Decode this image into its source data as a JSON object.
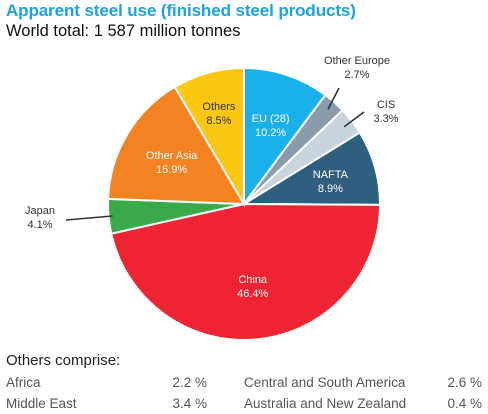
{
  "header": {
    "title": "Apparent steel use (finished steel products)",
    "subtitle": "World total: 1 587 million tonnes"
  },
  "chart_data": {
    "type": "pie",
    "unit": "%",
    "slices": [
      {
        "label": "EU (28)",
        "value": 10.2,
        "display": "10.2%",
        "color": "#1ab0ea",
        "label_color": "#ffffff"
      },
      {
        "label": "Other Europe",
        "value": 2.7,
        "display": "2.7%",
        "color": "#8a9bab",
        "label_color": "#333333"
      },
      {
        "label": "CIS",
        "value": 3.3,
        "display": "3.3%",
        "color": "#c9d3dc",
        "label_color": "#333333"
      },
      {
        "label": "NAFTA",
        "value": 8.9,
        "display": "8.9%",
        "color": "#2e5f7f",
        "label_color": "#ffffff"
      },
      {
        "label": "China",
        "value": 46.4,
        "display": "46.4%",
        "color": "#ef2432",
        "label_color": "#ffffff"
      },
      {
        "label": "Japan",
        "value": 4.1,
        "display": "4.1%",
        "color": "#3aaa48",
        "label_color": "#333333"
      },
      {
        "label": "Other Asia",
        "value": 15.9,
        "display": "15.9%",
        "color": "#f58220",
        "label_color": "#ffffff"
      },
      {
        "label": "Others",
        "value": 8.5,
        "display": "8.5%",
        "color": "#fbc713",
        "label_color": "#333333"
      }
    ]
  },
  "others_breakdown": {
    "heading": "Others comprise:",
    "items": [
      {
        "label": "Africa",
        "value": "2.2 %"
      },
      {
        "label": "Central and South America",
        "value": "2.6 %"
      },
      {
        "label": "Middle East",
        "value": "3.4 %"
      },
      {
        "label": "Australia and New Zealand",
        "value": "0.4 %"
      }
    ]
  }
}
